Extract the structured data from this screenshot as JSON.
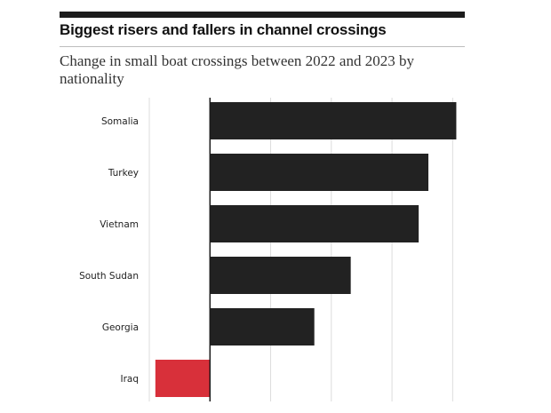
{
  "header": {
    "title": "Biggest risers and fallers in channel crossings",
    "subtitle": "Change in small boat crossings between 2022 and 2023 by nationality"
  },
  "colors": {
    "positive": "#222222",
    "negative": "#d8303a",
    "grid": "#dcdcdc",
    "axis": "#1c1c1c"
  },
  "chart_data": {
    "type": "bar",
    "orientation": "horizontal",
    "title": "Biggest risers and fallers in channel crossings",
    "subtitle": "Change in small boat crossings between 2022 and 2023 by nationality",
    "categories": [
      "Somalia",
      "Turkey",
      "Vietnam",
      "South Sudan",
      "Georgia",
      "Iraq"
    ],
    "values": [
      2030,
      1800,
      1720,
      1160,
      860,
      -450
    ],
    "xlim": [
      -500,
      2100
    ],
    "grid": true,
    "tick_labels_visible": false
  }
}
